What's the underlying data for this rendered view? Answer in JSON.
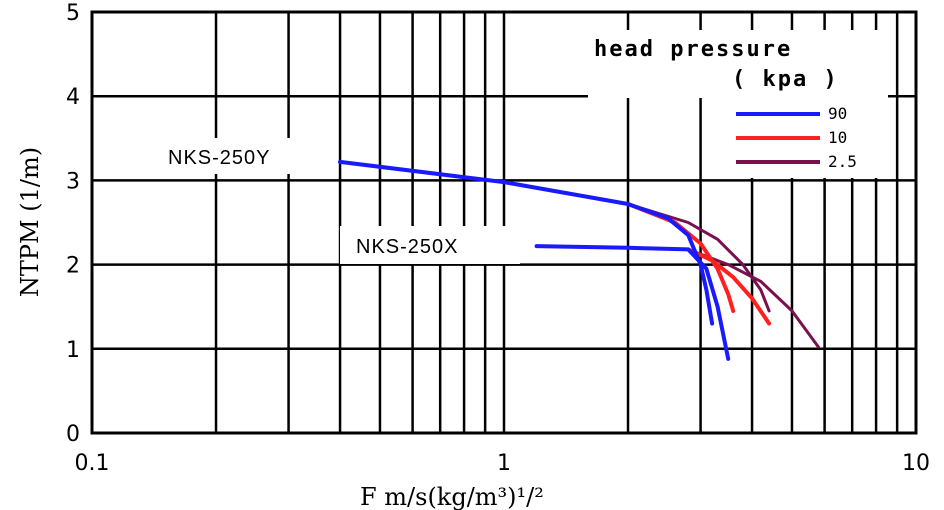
{
  "chart_data": {
    "type": "line",
    "title": "",
    "xlabel": "F    m/s(kg/m³)¹/²",
    "ylabel": "NTPM (1/m)",
    "x_scale": "log",
    "xlim": [
      0.1,
      10
    ],
    "ylim": [
      0,
      5
    ],
    "x_ticks": [
      "0.1",
      "1",
      "10"
    ],
    "y_ticks": [
      "0",
      "1",
      "2",
      "3",
      "4",
      "5"
    ],
    "grid": true,
    "legend": {
      "title_line1": "head pressure",
      "title_line2": "( kpa )",
      "position": "top-right",
      "entries": [
        {
          "label": "90",
          "color": "#1a1aff"
        },
        {
          "label": "10",
          "color": "#ff2020"
        },
        {
          "label": "2.5",
          "color": "#7a1050"
        }
      ]
    },
    "annotations": [
      {
        "text": "NKS-250Y",
        "series_group": "NKS-250Y"
      },
      {
        "text": "NKS-250X",
        "series_group": "NKS-250X"
      }
    ],
    "series": [
      {
        "name": "90",
        "group": "NKS-250Y",
        "color": "#1a1aff",
        "points": [
          [
            0.4,
            3.22
          ],
          [
            1.0,
            2.98
          ],
          [
            2.0,
            2.72
          ],
          [
            2.5,
            2.55
          ],
          [
            2.8,
            2.35
          ],
          [
            3.0,
            2.0
          ],
          [
            3.1,
            1.7
          ],
          [
            3.2,
            1.3
          ]
        ]
      },
      {
        "name": "10",
        "group": "NKS-250Y",
        "color": "#ff2020",
        "points": [
          [
            2.0,
            2.72
          ],
          [
            2.6,
            2.5
          ],
          [
            3.0,
            2.25
          ],
          [
            3.3,
            1.95
          ],
          [
            3.5,
            1.65
          ],
          [
            3.6,
            1.45
          ]
        ]
      },
      {
        "name": "2.5",
        "group": "NKS-250Y",
        "color": "#7a1050",
        "points": [
          [
            2.0,
            2.72
          ],
          [
            2.8,
            2.5
          ],
          [
            3.3,
            2.3
          ],
          [
            3.8,
            2.0
          ],
          [
            4.2,
            1.7
          ],
          [
            4.4,
            1.45
          ]
        ]
      },
      {
        "name": "90",
        "group": "NKS-250X",
        "color": "#1a1aff",
        "points": [
          [
            1.2,
            2.22
          ],
          [
            2.0,
            2.2
          ],
          [
            2.8,
            2.18
          ],
          [
            3.1,
            1.95
          ],
          [
            3.3,
            1.5
          ],
          [
            3.5,
            0.88
          ]
        ]
      },
      {
        "name": "10",
        "group": "NKS-250X",
        "color": "#ff2020",
        "points": [
          [
            2.8,
            2.18
          ],
          [
            3.2,
            2.05
          ],
          [
            3.6,
            1.85
          ],
          [
            4.0,
            1.6
          ],
          [
            4.4,
            1.3
          ]
        ]
      },
      {
        "name": "2.5",
        "group": "NKS-250X",
        "color": "#7a1050",
        "points": [
          [
            2.8,
            2.18
          ],
          [
            3.5,
            2.0
          ],
          [
            4.2,
            1.8
          ],
          [
            5.0,
            1.45
          ],
          [
            5.8,
            1.02
          ]
        ]
      }
    ]
  }
}
